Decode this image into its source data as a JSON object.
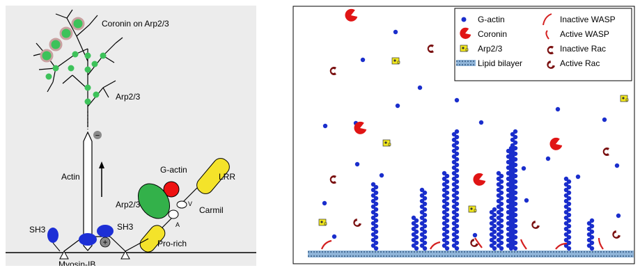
{
  "left_panel": {
    "labels": {
      "coronin": "Coronin on Arp2/3",
      "arp23_top": "Arp2/3",
      "actin": "Actin",
      "g_actin": "G-actin",
      "lrr": "LRR",
      "arp23_mid": "Arp2/3",
      "v": "V",
      "carmil": "Carmil",
      "a": "A",
      "sh3_left": "SH3",
      "sh3_right": "SH3",
      "pro_rich": "Pro-rich",
      "myosin": "Myosin-IB",
      "minus_sign": "−",
      "plus_sign": "+"
    },
    "colors": {
      "background": "#ececec",
      "arp_node": "#3dc25a",
      "g_actin": "#ee1111",
      "lrr": "#f4e32a",
      "pro_rich": "#f4e32a",
      "arp23_shape": "#33b14a",
      "myosin_head": "#1d2fd6"
    }
  },
  "right_panel": {
    "legend": [
      {
        "icon": "g-actin-icon",
        "label": "G-actin"
      },
      {
        "icon": "coronin-icon",
        "label": "Coronin"
      },
      {
        "icon": "arp23-icon",
        "label": "Arp2/3"
      },
      {
        "icon": "lipid-bilayer-icon",
        "label": "Lipid bilayer"
      },
      {
        "icon": "inactive-wasp-icon",
        "label": "Inactive WASP"
      },
      {
        "icon": "active-wasp-icon",
        "label": "Active WASP"
      },
      {
        "icon": "inactive-rac-icon",
        "label": "Inactive Rac"
      },
      {
        "icon": "active-rac-icon",
        "label": "Active Rac"
      }
    ],
    "colors": {
      "g_actin": "#1a2ecc",
      "coronin": "#e01515",
      "arp23": "#f2e81d",
      "rac": "#7a1010",
      "wasp": "#d42020",
      "membrane": "#8fb4d8"
    }
  }
}
